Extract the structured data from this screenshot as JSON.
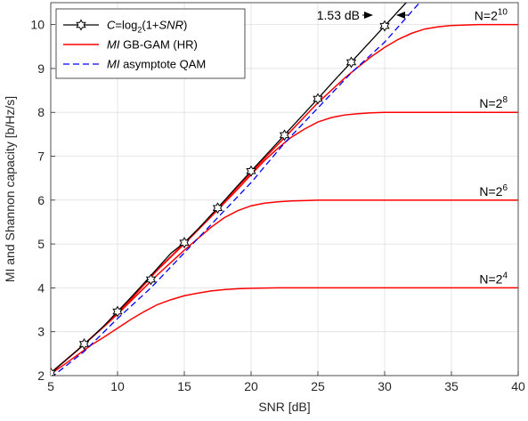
{
  "chart_data": {
    "type": "line",
    "xlabel": "SNR [dB]",
    "ylabel": "MI and Shannon capacity [b/Hz/s]",
    "xlim": [
      5,
      40
    ],
    "ylim": [
      2,
      10.5
    ],
    "xticks": [
      5,
      10,
      15,
      20,
      25,
      30,
      35,
      40
    ],
    "yticks": [
      2,
      3,
      4,
      5,
      6,
      7,
      8,
      9,
      10
    ],
    "grid": true,
    "legend_position": "top-left",
    "colors": {
      "capacity": "#000000",
      "mi": "#ff0000",
      "asymptote": "#0000ff"
    },
    "series": [
      {
        "name": "C=log2(1+SNR)",
        "legend_parts": {
          "pre": "C",
          "mid": "=log",
          "sub": "2",
          "post1": "(1+",
          "ital": "SNR",
          "post2": ")"
        },
        "style": "black-solid-hexagram",
        "x": [
          5,
          6,
          7,
          8,
          9,
          10,
          11,
          12,
          13,
          14,
          15,
          16,
          17,
          18,
          19,
          20,
          21,
          22,
          23,
          24,
          25,
          26,
          27,
          28,
          29,
          30,
          31,
          31.7
        ],
        "y": [
          2.06,
          2.32,
          2.58,
          2.85,
          3.14,
          3.46,
          3.78,
          4.11,
          4.45,
          4.79,
          5.03,
          5.33,
          5.66,
          5.99,
          6.33,
          6.66,
          6.99,
          7.32,
          7.65,
          7.98,
          8.31,
          8.65,
          8.98,
          9.31,
          9.64,
          9.97,
          10.3,
          10.53
        ],
        "markers_x": [
          5,
          7.5,
          10,
          12.5,
          15,
          17.5,
          20,
          22.5,
          25,
          27.5,
          30
        ],
        "markers_y": [
          2.06,
          2.72,
          3.46,
          4.19,
          5.03,
          5.82,
          6.66,
          7.48,
          8.31,
          9.14,
          9.97
        ]
      },
      {
        "name": "MI GB-GAM (HR)",
        "legend_parts": {
          "ital": "MI",
          "rest": " GB-GAM (HR)"
        },
        "style": "red-solid",
        "curves": [
          {
            "label": "N=2^4",
            "x": [
              5,
              6,
              7,
              8,
              9,
              10,
              11,
              12,
              13,
              14,
              15,
              16,
              17,
              18,
              19,
              20,
              22,
              24,
              26,
              28,
              30,
              35,
              40
            ],
            "y": [
              2.04,
              2.25,
              2.47,
              2.69,
              2.88,
              3.08,
              3.28,
              3.46,
              3.62,
              3.73,
              3.82,
              3.88,
              3.93,
              3.96,
              3.98,
              3.99,
              4.0,
              4.0,
              4.0,
              4.0,
              4.0,
              4.0,
              4.0
            ]
          },
          {
            "label": "N=2^6",
            "x": [
              5,
              7,
              9,
              10,
              11,
              12,
              13,
              14,
              15,
              16,
              17,
              18,
              19,
              20,
              21,
              22,
              23,
              24,
              25,
              26,
              28,
              30,
              35,
              40
            ],
            "y": [
              2.06,
              2.58,
              3.12,
              3.4,
              3.7,
              4.0,
              4.3,
              4.58,
              4.86,
              5.12,
              5.38,
              5.6,
              5.76,
              5.87,
              5.93,
              5.96,
              5.98,
              5.99,
              6.0,
              6.0,
              6.0,
              6.0,
              6.0,
              6.0
            ]
          },
          {
            "label": "N=2^8",
            "x": [
              5,
              7,
              9,
              11,
              13,
              15,
              17,
              19,
              20,
              21,
              22,
              23,
              24,
              25,
              26,
              27,
              28,
              29,
              30,
              32,
              35,
              40
            ],
            "y": [
              2.06,
              2.58,
              3.13,
              3.74,
              4.41,
              5.0,
              5.62,
              6.25,
              6.58,
              6.9,
              7.18,
              7.43,
              7.62,
              7.78,
              7.88,
              7.94,
              7.97,
              7.99,
              8.0,
              8.0,
              8.0,
              8.0
            ]
          },
          {
            "label": "N=2^10",
            "x": [
              5,
              7,
              9,
              11,
              13,
              15,
              17,
              19,
              21,
              23,
              25,
              27,
              28,
              29,
              30,
              31,
              32,
              33,
              34,
              35,
              36,
              37,
              38,
              40
            ],
            "y": [
              2.06,
              2.58,
              3.13,
              3.74,
              4.42,
              5.02,
              5.64,
              6.3,
              6.95,
              7.58,
              8.22,
              8.78,
              9.03,
              9.27,
              9.48,
              9.66,
              9.8,
              9.9,
              9.95,
              9.98,
              9.99,
              10.0,
              10.0,
              10.0
            ]
          }
        ]
      },
      {
        "name": "MI asymptote QAM",
        "legend_parts": {
          "ital": "MI",
          "rest": " asymptote QAM"
        },
        "style": "blue-dashed",
        "x": [
          5,
          7.5,
          10,
          12.5,
          15,
          17.5,
          20,
          22.5,
          25,
          27.5,
          30,
          32.7
        ],
        "y": [
          1.95,
          2.55,
          3.3,
          4.0,
          4.8,
          5.6,
          6.4,
          7.3,
          8.1,
          8.9,
          9.6,
          10.53
        ]
      }
    ],
    "annotations": {
      "gap": "1.53 dB",
      "curve_labels": [
        {
          "base": "N=2",
          "exp": "10",
          "y": 10
        },
        {
          "base": "N=2",
          "exp": "8",
          "y": 8
        },
        {
          "base": "N=2",
          "exp": "6",
          "y": 6
        },
        {
          "base": "N=2",
          "exp": "4",
          "y": 4
        }
      ]
    }
  }
}
